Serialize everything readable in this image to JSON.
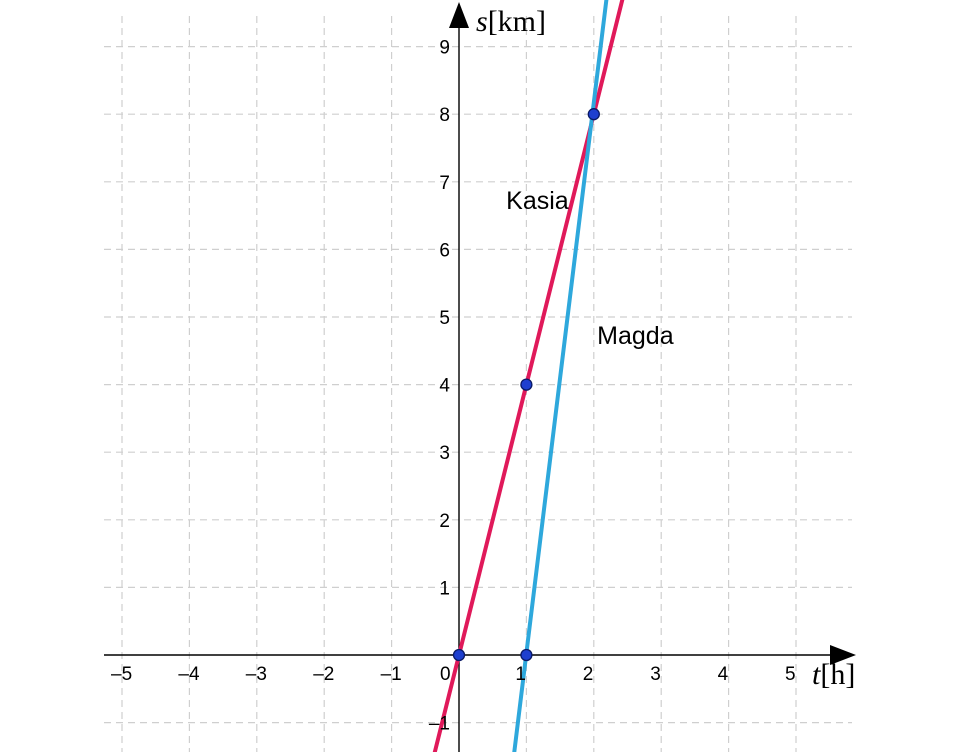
{
  "chart_data": {
    "type": "line",
    "title": "",
    "xlabel": "t[h]",
    "ylabel": "s[km]",
    "xlabel_var": "t",
    "xlabel_unit": "[h]",
    "ylabel_var": "s",
    "ylabel_unit": "[km]",
    "xlim": [
      -5.3,
      5.9
    ],
    "ylim": [
      -1.4,
      9.7
    ],
    "grid": true,
    "grid_style": "dashed",
    "x_ticks": [
      -5,
      -4,
      -3,
      -2,
      -1,
      1,
      2,
      3,
      4,
      5
    ],
    "x_tick_labels": [
      "–5",
      "–4",
      "–3",
      "–2",
      "–1",
      "1",
      "2",
      "3",
      "4",
      "5"
    ],
    "y_ticks": [
      -1,
      1,
      2,
      3,
      4,
      5,
      6,
      7,
      8,
      9
    ],
    "y_tick_labels": [
      "–1",
      "1",
      "2",
      "3",
      "4",
      "5",
      "6",
      "7",
      "8",
      "9"
    ],
    "origin_label": "0",
    "series": [
      {
        "name": "Kasia",
        "color": "#e0195a",
        "x": [
          -0.4,
          2.45
        ],
        "y": [
          -1.6,
          9.8
        ],
        "label_at": [
          0.7,
          6.6
        ]
      },
      {
        "name": "Magda",
        "color": "#2ea8dc",
        "x": [
          0.8,
          2.2
        ],
        "y": [
          -1.6,
          9.8
        ],
        "label_at": [
          2.05,
          4.6
        ]
      }
    ],
    "points": [
      {
        "x": 0,
        "y": 0
      },
      {
        "x": 1,
        "y": 0
      },
      {
        "x": 1,
        "y": 4
      },
      {
        "x": 2,
        "y": 8
      }
    ],
    "point_color": "#1e3fcf"
  }
}
